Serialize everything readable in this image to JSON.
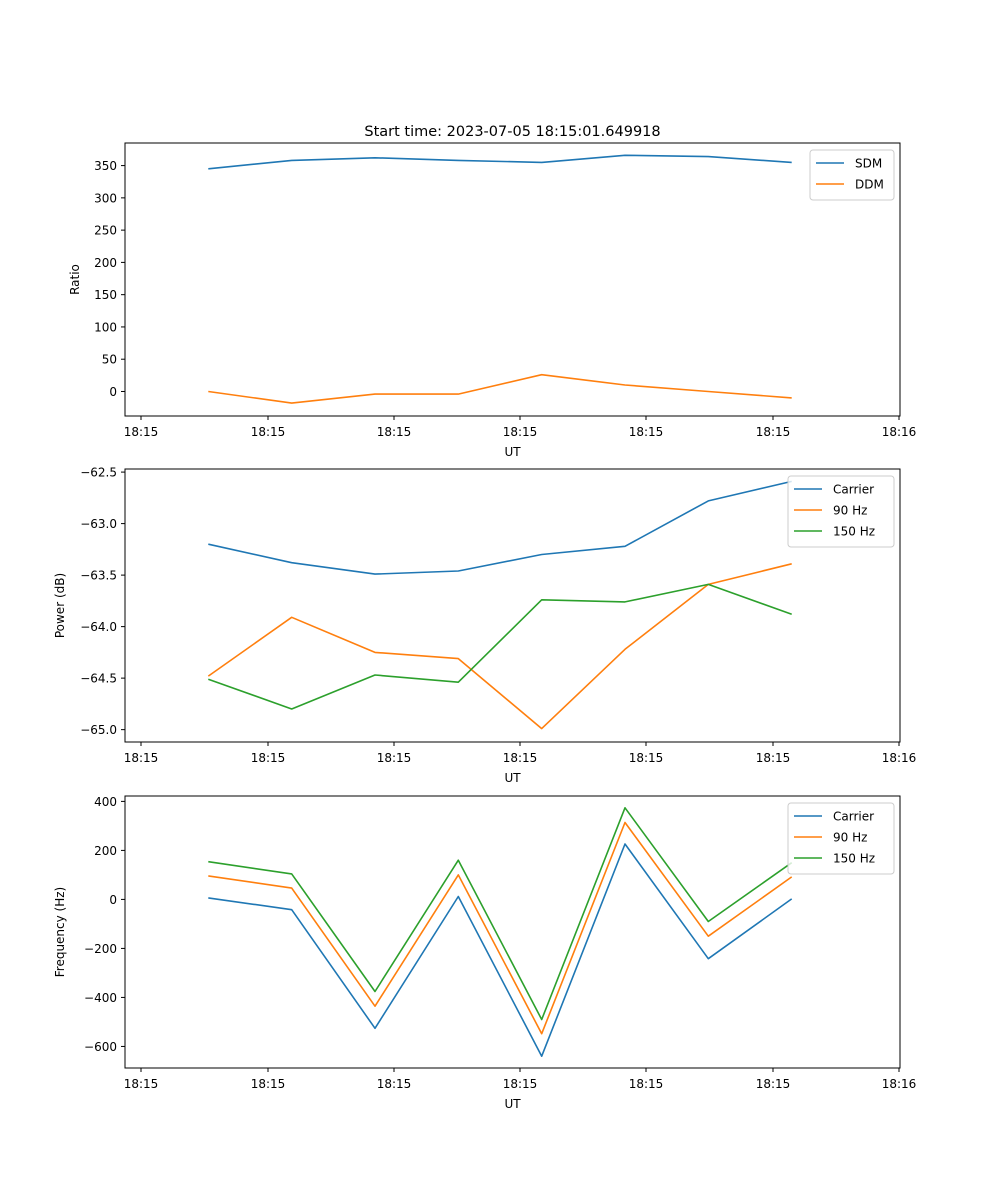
{
  "title": "Start time: 2023-07-05 18:15:01.649918",
  "chart_data": [
    {
      "type": "line",
      "title": "Start time: 2023-07-05 18:15:01.649918",
      "xlabel": "UT",
      "ylabel": "Ratio",
      "x_ticks": [
        "18:15",
        "18:15",
        "18:15",
        "18:15",
        "18:15",
        "18:15",
        "18:16"
      ],
      "x": [
        1,
        2,
        3,
        4,
        5,
        6,
        7,
        8
      ],
      "xlim": [
        0,
        9.3
      ],
      "ylim": [
        -38,
        385
      ],
      "yticks": [
        0,
        50,
        100,
        150,
        200,
        250,
        300,
        350
      ],
      "ytick_labels": [
        "0",
        "50",
        "100",
        "150",
        "200",
        "250",
        "300",
        "350"
      ],
      "legend_position": "top-right",
      "series": [
        {
          "name": "SDM",
          "color": "#1f77b4",
          "values": [
            345,
            358,
            362,
            358,
            355,
            366,
            364,
            355
          ]
        },
        {
          "name": "DDM",
          "color": "#ff7f0e",
          "values": [
            0,
            -18,
            -4,
            -4,
            26,
            10,
            0,
            -10
          ]
        }
      ]
    },
    {
      "type": "line",
      "xlabel": "UT",
      "ylabel": "Power (dB)",
      "x_ticks": [
        "18:15",
        "18:15",
        "18:15",
        "18:15",
        "18:15",
        "18:15",
        "18:16"
      ],
      "x": [
        1,
        2,
        3,
        4,
        5,
        6,
        7,
        8
      ],
      "xlim": [
        0,
        9.3
      ],
      "ylim": [
        -65.12,
        -62.47
      ],
      "yticks": [
        -65.0,
        -64.5,
        -64.0,
        -63.5,
        -63.0,
        -62.5
      ],
      "ytick_labels": [
        "−65.0",
        "−64.5",
        "−64.0",
        "−63.5",
        "−63.0",
        "−62.5"
      ],
      "legend_position": "top-right",
      "series": [
        {
          "name": "Carrier",
          "color": "#1f77b4",
          "values": [
            -63.2,
            -63.38,
            -63.49,
            -63.46,
            -63.3,
            -63.22,
            -62.78,
            -62.59
          ]
        },
        {
          "name": "90 Hz",
          "color": "#ff7f0e",
          "values": [
            -64.48,
            -63.91,
            -64.25,
            -64.31,
            -64.99,
            -64.22,
            -63.59,
            -63.39
          ]
        },
        {
          "name": "150 Hz",
          "color": "#2ca02c",
          "values": [
            -64.51,
            -64.8,
            -64.47,
            -64.54,
            -63.74,
            -63.76,
            -63.59,
            -63.88
          ]
        }
      ]
    },
    {
      "type": "line",
      "xlabel": "UT",
      "ylabel": "Frequency (Hz)",
      "x_ticks": [
        "18:15",
        "18:15",
        "18:15",
        "18:15",
        "18:15",
        "18:15",
        "18:16"
      ],
      "x": [
        1,
        2,
        3,
        4,
        5,
        6,
        7,
        8
      ],
      "xlim": [
        0,
        9.3
      ],
      "ylim": [
        -688,
        422
      ],
      "yticks": [
        -600,
        -400,
        -200,
        0,
        200,
        400
      ],
      "ytick_labels": [
        "−600",
        "−400",
        "−200",
        "0",
        "200",
        "400"
      ],
      "legend_position": "top-right",
      "series": [
        {
          "name": "Carrier",
          "color": "#1f77b4",
          "values": [
            6,
            -42,
            -526,
            12,
            -640,
            226,
            -242,
            2
          ]
        },
        {
          "name": "90 Hz",
          "color": "#ff7f0e",
          "values": [
            96,
            46,
            -436,
            100,
            -548,
            314,
            -150,
            92
          ]
        },
        {
          "name": "150 Hz",
          "color": "#2ca02c",
          "values": [
            154,
            104,
            -376,
            160,
            -490,
            374,
            -90,
            150
          ]
        }
      ]
    }
  ]
}
